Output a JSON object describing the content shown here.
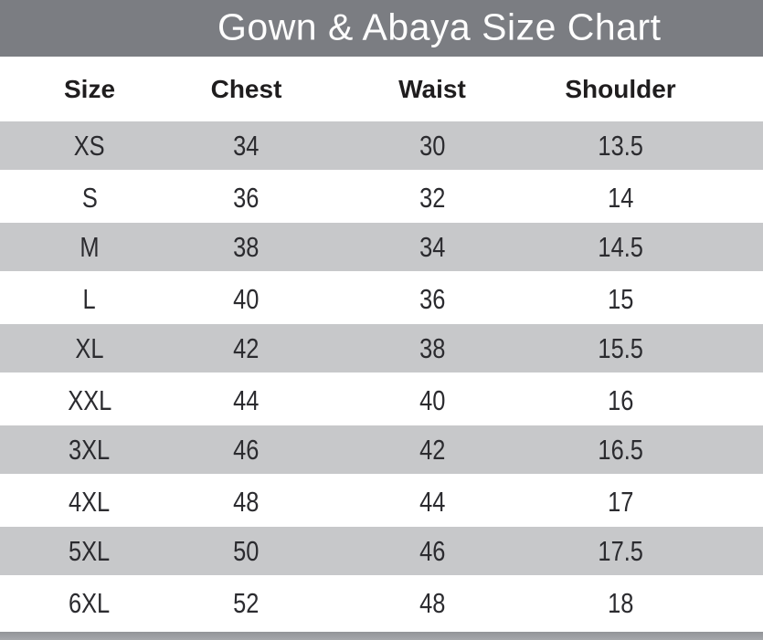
{
  "title": "Gown & Abaya Size Chart",
  "columns": {
    "size": "Size",
    "chest": "Chest",
    "waist": "Waist",
    "shoulder": "Shoulder"
  },
  "rows": [
    {
      "size": "XS",
      "chest": "34",
      "waist": "30",
      "shoulder": "13.5"
    },
    {
      "size": "S",
      "chest": "36",
      "waist": "32",
      "shoulder": "14"
    },
    {
      "size": "M",
      "chest": "38",
      "waist": "34",
      "shoulder": "14.5"
    },
    {
      "size": "L",
      "chest": "40",
      "waist": "36",
      "shoulder": "15"
    },
    {
      "size": "XL",
      "chest": "42",
      "waist": "38",
      "shoulder": "15.5"
    },
    {
      "size": "XXL",
      "chest": "44",
      "waist": "40",
      "shoulder": "16"
    },
    {
      "size": "3XL",
      "chest": "46",
      "waist": "42",
      "shoulder": "16.5"
    },
    {
      "size": "4XL",
      "chest": "48",
      "waist": "44",
      "shoulder": "17"
    },
    {
      "size": "5XL",
      "chest": "50",
      "waist": "46",
      "shoulder": "17.5"
    },
    {
      "size": "6XL",
      "chest": "52",
      "waist": "48",
      "shoulder": "18"
    }
  ],
  "colors": {
    "title_bar_bg": "#7b7d82",
    "title_text": "#fdfdfd",
    "stripe_bg": "#c7c8ca",
    "header_text": "#1f1d1e",
    "cell_text": "#2b2b2f",
    "footer_bar_bg": "#9b9da0"
  },
  "chart_data": {
    "type": "table",
    "title": "Gown & Abaya Size Chart",
    "columns": [
      "Size",
      "Chest",
      "Waist",
      "Shoulder"
    ],
    "rows": [
      [
        "XS",
        34,
        30,
        13.5
      ],
      [
        "S",
        36,
        32,
        14
      ],
      [
        "M",
        38,
        34,
        14.5
      ],
      [
        "L",
        40,
        36,
        15
      ],
      [
        "XL",
        42,
        38,
        15.5
      ],
      [
        "XXL",
        44,
        40,
        16
      ],
      [
        "3XL",
        46,
        42,
        16.5
      ],
      [
        "4XL",
        48,
        44,
        17
      ],
      [
        "5XL",
        50,
        46,
        17.5
      ],
      [
        "6XL",
        52,
        48,
        18
      ]
    ],
    "layout": {
      "striped_rows": "odd rows gray",
      "header_style": "bold black on white",
      "title_style": "white on gray bar"
    }
  }
}
